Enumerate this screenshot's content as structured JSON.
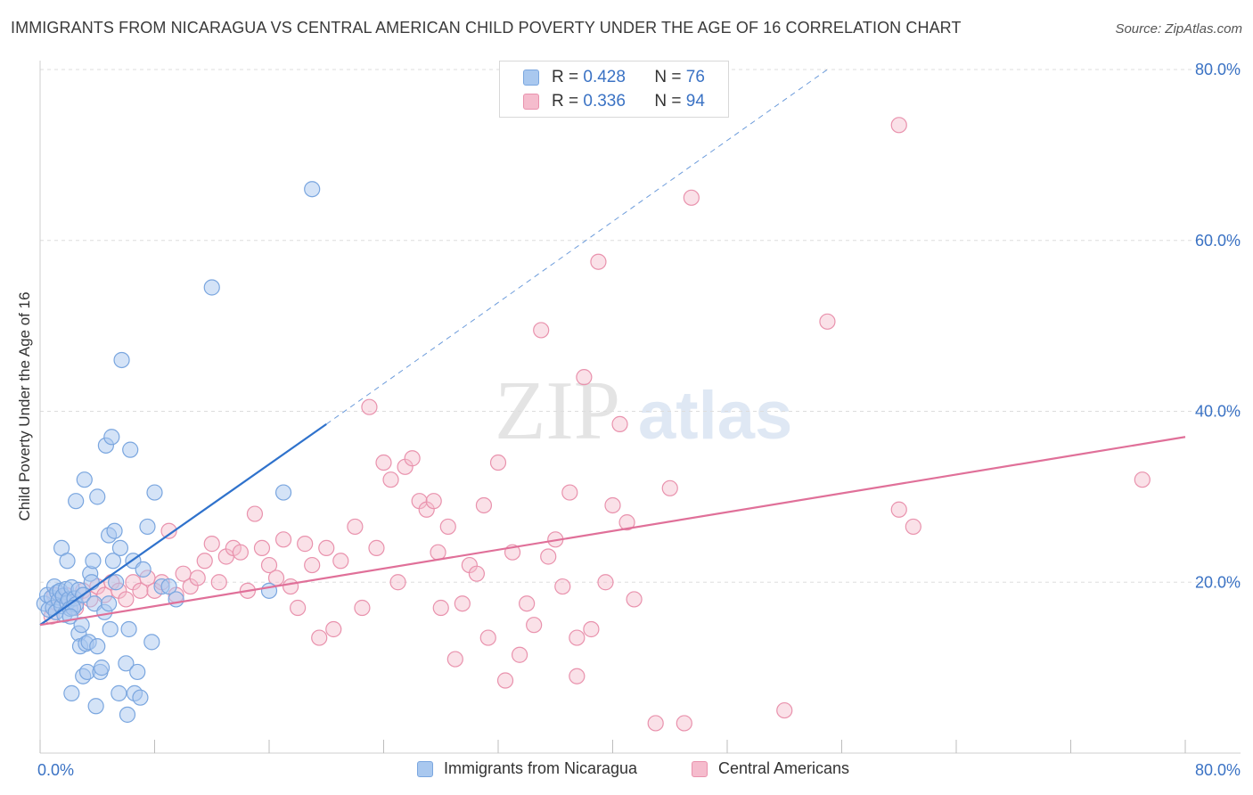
{
  "title": "IMMIGRANTS FROM NICARAGUA VS CENTRAL AMERICAN CHILD POVERTY UNDER THE AGE OF 16 CORRELATION CHART",
  "source": "Source: ZipAtlas.com",
  "watermark": {
    "zip": "ZIP",
    "atlas": "atlas"
  },
  "legend": {
    "series1": {
      "r_label": "R =",
      "r_value": "0.428",
      "n_label": "N =",
      "n_value": "76"
    },
    "series2": {
      "r_label": "R =",
      "r_value": "0.336",
      "n_label": "N =",
      "n_value": "94"
    }
  },
  "chart_data": {
    "type": "scatter",
    "title": "IMMIGRANTS FROM NICARAGUA VS CENTRAL AMERICAN CHILD POVERTY UNDER THE AGE OF 16 CORRELATION CHART",
    "xlabel": "",
    "ylabel": "Child Poverty Under the Age of 16",
    "xlim": [
      0,
      80
    ],
    "ylim": [
      0,
      80
    ],
    "x_tick_labels": [
      "0.0%",
      "80.0%"
    ],
    "y_tick_labels": [
      "20.0%",
      "40.0%",
      "60.0%",
      "80.0%"
    ],
    "y_ticks": [
      20,
      40,
      60,
      80
    ],
    "grid": true,
    "colors": {
      "series1_fill": "#a9c8ef",
      "series1_stroke": "#7aa6df",
      "series1_line": "#2f72cc",
      "series2_fill": "#f5bccd",
      "series2_stroke": "#e992ad",
      "series2_line": "#e07099",
      "axis_text": "#3a72c4",
      "grid": "#dddddd"
    },
    "series": [
      {
        "name": "Immigrants from Nicaragua",
        "r": 0.428,
        "n": 76,
        "trend": {
          "x0": 0,
          "y0": 15.0,
          "x1": 20,
          "y1": 38.5,
          "dash_to_x": 55,
          "dash_to_y": 80
        },
        "points": [
          [
            0.3,
            17.5
          ],
          [
            0.5,
            18.5
          ],
          [
            0.6,
            16.8
          ],
          [
            0.8,
            18.2
          ],
          [
            0.9,
            17.0
          ],
          [
            1.0,
            19.5
          ],
          [
            1.1,
            16.5
          ],
          [
            1.2,
            18.8
          ],
          [
            1.3,
            17.9
          ],
          [
            1.4,
            19.0
          ],
          [
            1.5,
            17.2
          ],
          [
            1.6,
            18.4
          ],
          [
            1.7,
            16.2
          ],
          [
            1.8,
            19.2
          ],
          [
            1.9,
            17.6
          ],
          [
            2.0,
            18.0
          ],
          [
            2.1,
            16.9
          ],
          [
            2.2,
            19.4
          ],
          [
            2.4,
            18.1
          ],
          [
            2.5,
            17.4
          ],
          [
            2.7,
            19.1
          ],
          [
            1.5,
            24.0
          ],
          [
            1.9,
            22.5
          ],
          [
            2.2,
            7.0
          ],
          [
            2.3,
            17.0
          ],
          [
            2.1,
            16.0
          ],
          [
            2.5,
            29.5
          ],
          [
            2.7,
            14.0
          ],
          [
            2.8,
            12.5
          ],
          [
            2.9,
            15.0
          ],
          [
            3.0,
            18.5
          ],
          [
            3.0,
            9.0
          ],
          [
            3.1,
            32.0
          ],
          [
            3.2,
            12.8
          ],
          [
            3.3,
            9.5
          ],
          [
            3.4,
            13.0
          ],
          [
            3.5,
            21.0
          ],
          [
            3.6,
            20.0
          ],
          [
            3.7,
            22.5
          ],
          [
            3.8,
            17.5
          ],
          [
            3.9,
            5.5
          ],
          [
            4.0,
            12.5
          ],
          [
            4.0,
            30.0
          ],
          [
            4.2,
            9.5
          ],
          [
            4.3,
            10.0
          ],
          [
            4.5,
            16.5
          ],
          [
            4.6,
            36.0
          ],
          [
            4.8,
            25.5
          ],
          [
            4.8,
            17.5
          ],
          [
            4.9,
            14.5
          ],
          [
            5.0,
            37.0
          ],
          [
            5.1,
            22.5
          ],
          [
            5.2,
            26.0
          ],
          [
            5.3,
            20.0
          ],
          [
            5.5,
            7.0
          ],
          [
            5.6,
            24.0
          ],
          [
            5.7,
            46.0
          ],
          [
            6.0,
            10.5
          ],
          [
            6.1,
            4.5
          ],
          [
            6.2,
            14.5
          ],
          [
            6.3,
            35.5
          ],
          [
            6.5,
            22.5
          ],
          [
            6.6,
            7.0
          ],
          [
            6.8,
            9.5
          ],
          [
            7.0,
            6.5
          ],
          [
            7.2,
            21.5
          ],
          [
            7.5,
            26.5
          ],
          [
            7.8,
            13.0
          ],
          [
            8.0,
            30.5
          ],
          [
            8.5,
            19.5
          ],
          [
            9.0,
            19.5
          ],
          [
            9.5,
            18.0
          ],
          [
            12.0,
            54.5
          ],
          [
            16.0,
            19.0
          ],
          [
            17.0,
            30.5
          ],
          [
            19.0,
            66.0
          ]
        ]
      },
      {
        "name": "Central Americans",
        "r": 0.336,
        "n": 94,
        "trend": {
          "x0": 0,
          "y0": 15.0,
          "x1": 80,
          "y1": 37.0
        },
        "points": [
          [
            0.8,
            16.0
          ],
          [
            1.2,
            17.5
          ],
          [
            1.8,
            18.5
          ],
          [
            2.5,
            17.0
          ],
          [
            3.0,
            19.0
          ],
          [
            3.5,
            18.0
          ],
          [
            4.0,
            19.5
          ],
          [
            4.5,
            18.5
          ],
          [
            5.0,
            20.0
          ],
          [
            5.5,
            19.0
          ],
          [
            6.0,
            18.0
          ],
          [
            6.5,
            20.0
          ],
          [
            7.0,
            19.0
          ],
          [
            7.5,
            20.5
          ],
          [
            8.0,
            19.0
          ],
          [
            8.5,
            20.0
          ],
          [
            9.0,
            26.0
          ],
          [
            9.5,
            18.5
          ],
          [
            10.0,
            21.0
          ],
          [
            10.5,
            19.5
          ],
          [
            11.0,
            20.5
          ],
          [
            11.5,
            22.5
          ],
          [
            12.0,
            24.5
          ],
          [
            12.5,
            20.0
          ],
          [
            13.0,
            23.0
          ],
          [
            13.5,
            24.0
          ],
          [
            14.0,
            23.5
          ],
          [
            14.5,
            19.0
          ],
          [
            15.0,
            28.0
          ],
          [
            15.5,
            24.0
          ],
          [
            16.0,
            22.0
          ],
          [
            16.5,
            20.5
          ],
          [
            17.0,
            25.0
          ],
          [
            17.5,
            19.5
          ],
          [
            18.0,
            17.0
          ],
          [
            18.5,
            24.5
          ],
          [
            19.0,
            22.0
          ],
          [
            19.5,
            13.5
          ],
          [
            20.0,
            24.0
          ],
          [
            20.5,
            14.5
          ],
          [
            21.0,
            22.5
          ],
          [
            22.0,
            26.5
          ],
          [
            22.5,
            17.0
          ],
          [
            23.0,
            40.5
          ],
          [
            23.5,
            24.0
          ],
          [
            24.0,
            34.0
          ],
          [
            24.5,
            32.0
          ],
          [
            25.0,
            20.0
          ],
          [
            25.5,
            33.5
          ],
          [
            26.0,
            34.5
          ],
          [
            26.5,
            29.5
          ],
          [
            27.0,
            28.5
          ],
          [
            27.5,
            29.5
          ],
          [
            27.8,
            23.5
          ],
          [
            28.0,
            17.0
          ],
          [
            28.5,
            26.5
          ],
          [
            29.0,
            11.0
          ],
          [
            29.5,
            17.5
          ],
          [
            30.0,
            22.0
          ],
          [
            30.5,
            21.0
          ],
          [
            31.0,
            29.0
          ],
          [
            31.3,
            13.5
          ],
          [
            32.0,
            34.0
          ],
          [
            32.5,
            8.5
          ],
          [
            33.0,
            23.5
          ],
          [
            33.5,
            11.5
          ],
          [
            34.0,
            17.5
          ],
          [
            34.5,
            15.0
          ],
          [
            35.0,
            49.5
          ],
          [
            35.5,
            23.0
          ],
          [
            36.0,
            25.0
          ],
          [
            36.5,
            19.5
          ],
          [
            37.0,
            30.5
          ],
          [
            37.5,
            13.5
          ],
          [
            37.5,
            9.0
          ],
          [
            38.0,
            44.0
          ],
          [
            38.5,
            14.5
          ],
          [
            39.0,
            57.5
          ],
          [
            39.5,
            20.0
          ],
          [
            40.0,
            29.0
          ],
          [
            40.5,
            38.5
          ],
          [
            41.0,
            27.0
          ],
          [
            41.5,
            18.0
          ],
          [
            43.0,
            3.5
          ],
          [
            44.0,
            31.0
          ],
          [
            45.0,
            3.5
          ],
          [
            45.5,
            65.0
          ],
          [
            52.0,
            5.0
          ],
          [
            55.0,
            50.5
          ],
          [
            60.0,
            28.5
          ],
          [
            60.0,
            73.5
          ],
          [
            61.0,
            26.5
          ],
          [
            77.0,
            32.0
          ],
          [
            1.0,
            18.5
          ]
        ]
      }
    ]
  },
  "bottom_legend": {
    "series1": "Immigrants from Nicaragua",
    "series2": "Central Americans"
  }
}
